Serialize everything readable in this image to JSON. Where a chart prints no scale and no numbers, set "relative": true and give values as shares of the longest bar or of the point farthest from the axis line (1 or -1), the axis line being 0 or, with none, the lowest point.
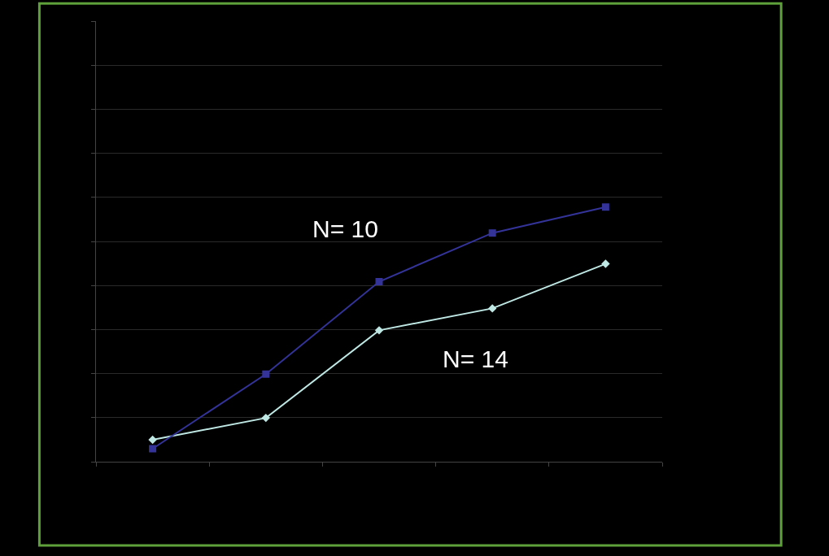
{
  "chart_data": {
    "type": "line",
    "relative": true,
    "categories": [
      null,
      null,
      null,
      null,
      null
    ],
    "series": [
      {
        "color": "#bfe8e4",
        "marker": "diamond",
        "values": [
          0.086,
          0.172,
          0.516,
          0.602,
          0.777
        ]
      },
      {
        "color": "#333399",
        "marker": "square",
        "values": [
          0.051,
          0.344,
          0.707,
          0.898,
          1
        ]
      }
    ],
    "annotations": [
      "N= 10",
      "N= 14"
    ],
    "grid": "y"
  }
}
